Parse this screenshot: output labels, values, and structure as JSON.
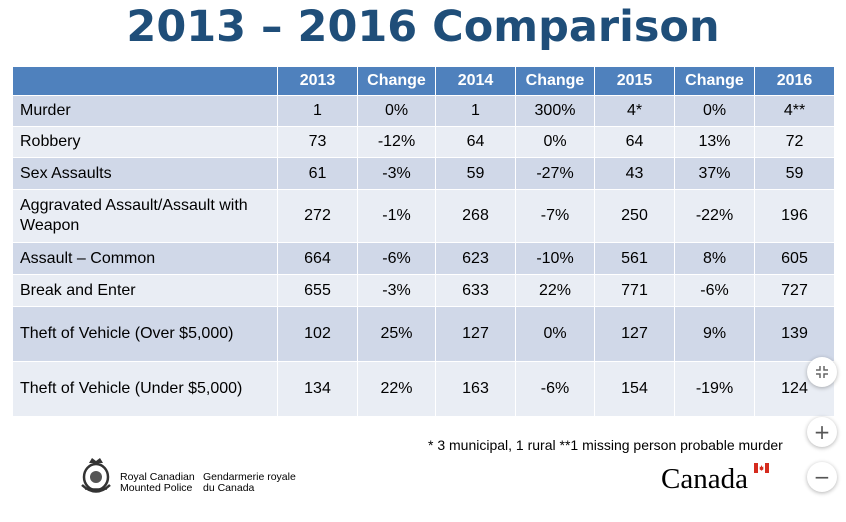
{
  "slide": {
    "title": "2013 – 2016 Comparison",
    "footnote": "* 3 municipal, 1 rural **1 missing person probable murder"
  },
  "table": {
    "headers": [
      "",
      "2013",
      "Change",
      "2014",
      "Change",
      "2015",
      "Change",
      "2016"
    ],
    "rows": [
      {
        "label": "Murder",
        "cells": [
          "1",
          "0%",
          "1",
          "300%",
          "4*",
          "0%",
          "4**"
        ]
      },
      {
        "label": "Robbery",
        "cells": [
          "73",
          "-12%",
          "64",
          "0%",
          "64",
          "13%",
          "72"
        ]
      },
      {
        "label": "Sex Assaults",
        "cells": [
          "61",
          "-3%",
          "59",
          "-27%",
          "43",
          "37%",
          "59"
        ]
      },
      {
        "label": "Aggravated Assault/Assault with Weapon",
        "cells": [
          "272",
          "-1%",
          "268",
          "-7%",
          "250",
          "-22%",
          "196"
        ]
      },
      {
        "label": "Assault – Common",
        "cells": [
          "664",
          "-6%",
          "623",
          "-10%",
          "561",
          "8%",
          "605"
        ]
      },
      {
        "label": "Break and Enter",
        "cells": [
          "655",
          "-3%",
          "633",
          "22%",
          "771",
          "-6%",
          "727"
        ]
      },
      {
        "label": "Theft of Vehicle (Over $5,000)",
        "cells": [
          "102",
          "25%",
          "127",
          "0%",
          "127",
          "9%",
          "139"
        ]
      },
      {
        "label": "Theft of Vehicle (Under $5,000)",
        "cells": [
          "134",
          "22%",
          "163",
          "-6%",
          "154",
          "-19%",
          "124"
        ]
      }
    ]
  },
  "branding": {
    "rcmp_en_line1": "Royal Canadian",
    "rcmp_en_line2": "Mounted Police",
    "rcmp_fr_line1": "Gendarmerie royale",
    "rcmp_fr_line2": "du Canada",
    "wordmark": "Canada"
  },
  "controls": {
    "fit_icon": "fit-screen-icon",
    "zoom_in_label": "+",
    "zoom_out_label": "−"
  },
  "colors": {
    "title": "#1f4e79",
    "header_bg": "#4f81bd",
    "row_odd": "#d0d8e8",
    "row_even": "#e9edf4",
    "flag_red": "#d52b1e"
  }
}
